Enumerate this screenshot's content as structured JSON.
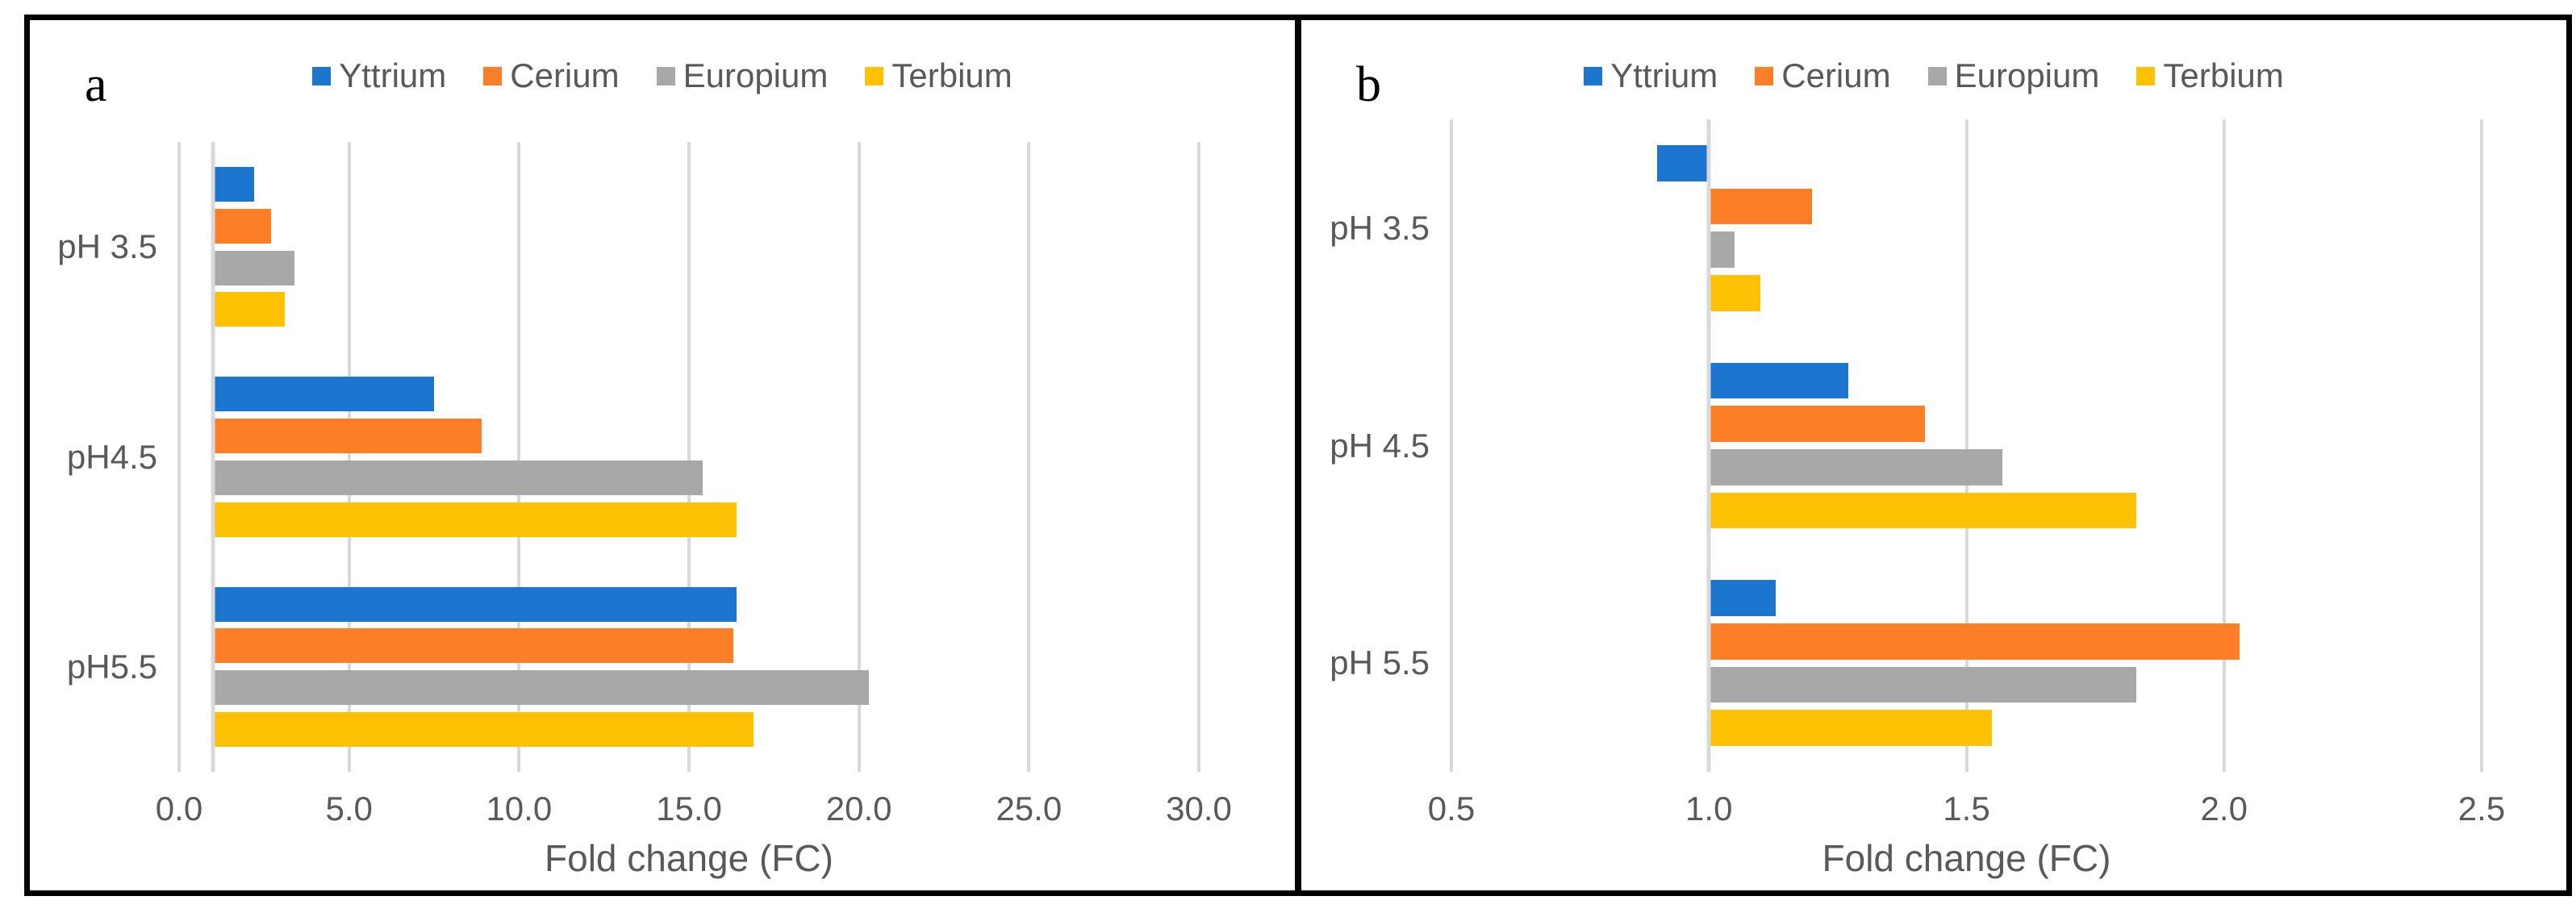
{
  "style": {
    "background": "#FFFFFF",
    "frame_color": "#000000",
    "grid_color": "#D9D9D9",
    "text_color": "#595959"
  },
  "chart_data": [
    {
      "panel": "a",
      "type": "bar",
      "orientation": "horizontal",
      "title": "",
      "xlabel": "Fold change (FC)",
      "ylabel": "",
      "grid": true,
      "legend_position": "top",
      "categories": [
        "pH 3.5",
        "pH4.5",
        "pH5.5"
      ],
      "series": [
        {
          "name": "Yttrium",
          "color": "#1C75CE",
          "values": [
            2.2,
            7.5,
            16.4
          ]
        },
        {
          "name": "Cerium",
          "color": "#FC7E27",
          "values": [
            2.7,
            8.9,
            16.3
          ]
        },
        {
          "name": "Europium",
          "color": "#A8A8A8",
          "values": [
            3.4,
            15.4,
            20.3
          ]
        },
        {
          "name": "Terbium",
          "color": "#FFC103",
          "values": [
            3.1,
            16.4,
            16.9
          ]
        }
      ],
      "xlim": [
        0.0,
        30.0
      ],
      "bar_base": 1.0,
      "xticks": [
        0.0,
        5.0,
        10.0,
        15.0,
        20.0,
        25.0,
        30.0
      ],
      "tick_labels": [
        "0.0",
        "5.0",
        "10.0",
        "15.0",
        "20.0",
        "25.0",
        "30.0"
      ]
    },
    {
      "panel": "b",
      "type": "bar",
      "orientation": "horizontal",
      "title": "",
      "xlabel": "Fold change (FC)",
      "ylabel": "",
      "grid": true,
      "legend_position": "top",
      "categories": [
        "pH 3.5",
        "pH 4.5",
        "pH 5.5"
      ],
      "series": [
        {
          "name": "Yttrium",
          "color": "#1C75CE",
          "values": [
            0.9,
            1.27,
            1.13
          ]
        },
        {
          "name": "Cerium",
          "color": "#FC7E27",
          "values": [
            1.2,
            1.42,
            2.03
          ]
        },
        {
          "name": "Europium",
          "color": "#A8A8A8",
          "values": [
            1.05,
            1.57,
            1.83
          ]
        },
        {
          "name": "Terbium",
          "color": "#FFC103",
          "values": [
            1.1,
            1.83,
            1.55
          ]
        }
      ],
      "xlim": [
        0.5,
        2.5
      ],
      "bar_base": 1.0,
      "xticks": [
        0.5,
        1.0,
        1.5,
        2.0,
        2.5
      ],
      "tick_labels": [
        "0.5",
        "1.0",
        "1.5",
        "2.0",
        "2.5"
      ]
    }
  ]
}
